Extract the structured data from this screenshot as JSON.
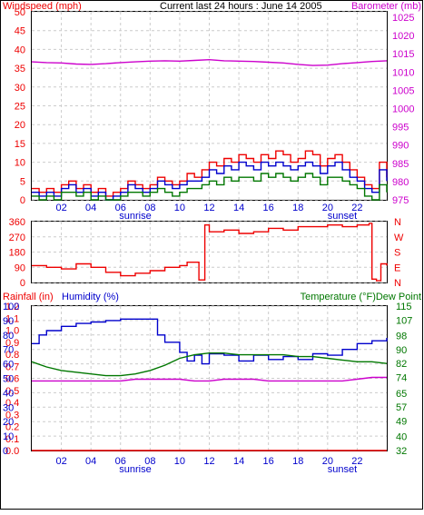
{
  "header": {
    "title": "Current last 24 hours : June 14 2005",
    "left_axis_label": "Windspeed (mph)",
    "right_axis_label": "Barometer (mb)"
  },
  "colors": {
    "red": "#ee0000",
    "blue": "#0000cc",
    "green": "#007700",
    "magenta": "#cc00cc",
    "grid": "#cccccc",
    "frame": "#000000"
  },
  "x_axis": {
    "ticks": [
      "02",
      "04",
      "06",
      "08",
      "10",
      "12",
      "14",
      "16",
      "18",
      "20",
      "22"
    ],
    "sunrise_label": "sunrise",
    "sunset_label": "sunset"
  },
  "chart_data": [
    {
      "type": "line",
      "name": "wind-barometer",
      "x_range": [
        0,
        24
      ],
      "left_axis": {
        "label": "Windspeed (mph)",
        "ticks": [
          0,
          5,
          10,
          15,
          20,
          25,
          30,
          35,
          40,
          45,
          50
        ],
        "ylim": [
          0,
          50
        ]
      },
      "right_axis": {
        "label": "Barometer (mb)",
        "ticks": [
          975,
          980,
          985,
          990,
          995,
          1000,
          1005,
          1010,
          1015,
          1020,
          1025
        ],
        "ylim": [
          975,
          1026.5
        ]
      },
      "series": [
        {
          "color_key": "magenta",
          "axis": "right",
          "x": [
            0,
            1,
            2,
            3,
            4,
            5,
            6,
            7,
            8,
            9,
            10,
            11,
            12,
            13,
            14,
            15,
            16,
            17,
            18,
            19,
            20,
            21,
            22,
            23,
            24
          ],
          "y": [
            1012.8,
            1012.6,
            1012.5,
            1012.2,
            1012.1,
            1012.3,
            1012.6,
            1012.8,
            1013.0,
            1013.1,
            1013.0,
            1013.2,
            1013.4,
            1013.1,
            1013.0,
            1012.9,
            1012.7,
            1012.5,
            1012.1,
            1011.8,
            1011.9,
            1012.3,
            1012.6,
            1012.9,
            1013.1
          ]
        },
        {
          "color_key": "red",
          "axis": "left",
          "x": [
            0,
            0.5,
            1,
            1.5,
            2,
            2.5,
            3,
            3.5,
            4,
            4.5,
            5,
            5.5,
            6,
            6.5,
            7,
            7.5,
            8,
            8.5,
            9,
            9.5,
            10,
            10.5,
            11,
            11.5,
            12,
            12.5,
            13,
            13.5,
            14,
            14.5,
            15,
            15.5,
            16,
            16.5,
            17,
            17.5,
            18,
            18.5,
            19,
            19.5,
            20,
            20.5,
            21,
            21.5,
            22,
            22.5,
            23,
            23.5,
            24
          ],
          "y": [
            3,
            2,
            3,
            2,
            4,
            5,
            3,
            4,
            2,
            3,
            1,
            2,
            3,
            5,
            4,
            3,
            4,
            6,
            5,
            4,
            5,
            7,
            6,
            8,
            10,
            9,
            11,
            10,
            12,
            11,
            10,
            12,
            11,
            13,
            12,
            10,
            11,
            13,
            12,
            9,
            11,
            12,
            10,
            8,
            6,
            4,
            3,
            10,
            6
          ]
        },
        {
          "color_key": "blue",
          "axis": "left",
          "x": [
            0,
            0.5,
            1,
            1.5,
            2,
            2.5,
            3,
            3.5,
            4,
            4.5,
            5,
            5.5,
            6,
            6.5,
            7,
            7.5,
            8,
            8.5,
            9,
            9.5,
            10,
            10.5,
            11,
            11.5,
            12,
            12.5,
            13,
            13.5,
            14,
            14.5,
            15,
            15.5,
            16,
            16.5,
            17,
            17.5,
            18,
            18.5,
            19,
            19.5,
            20,
            20.5,
            21,
            21.5,
            22,
            22.5,
            23,
            23.5,
            24
          ],
          "y": [
            2,
            1,
            2,
            1,
            3,
            4,
            2,
            3,
            1,
            2,
            0,
            1,
            2,
            4,
            3,
            2,
            3,
            5,
            4,
            3,
            4,
            5,
            5,
            6,
            8,
            7,
            9,
            8,
            10,
            9,
            8,
            10,
            9,
            10,
            9,
            8,
            9,
            10,
            9,
            7,
            9,
            10,
            8,
            6,
            5,
            3,
            2,
            8,
            5
          ]
        },
        {
          "color_key": "green",
          "axis": "left",
          "x": [
            0,
            0.5,
            1,
            1.5,
            2,
            2.5,
            3,
            3.5,
            4,
            4.5,
            5,
            5.5,
            6,
            6.5,
            7,
            7.5,
            8,
            8.5,
            9,
            9.5,
            10,
            10.5,
            11,
            11.5,
            12,
            12.5,
            13,
            13.5,
            14,
            14.5,
            15,
            15.5,
            16,
            16.5,
            17,
            17.5,
            18,
            18.5,
            19,
            19.5,
            20,
            20.5,
            21,
            21.5,
            22,
            22.5,
            23,
            23.5,
            24
          ],
          "y": [
            1,
            0,
            1,
            0,
            2,
            2,
            1,
            2,
            0,
            1,
            0,
            0,
            1,
            2,
            2,
            1,
            2,
            3,
            2,
            1,
            2,
            3,
            3,
            4,
            5,
            4,
            6,
            5,
            6,
            6,
            5,
            7,
            6,
            7,
            6,
            5,
            6,
            7,
            6,
            4,
            6,
            6,
            5,
            4,
            3,
            1,
            0,
            4,
            2
          ]
        }
      ]
    },
    {
      "type": "line",
      "name": "wind-direction",
      "x_range": [
        0,
        24
      ],
      "left_axis": {
        "ticks": [
          0,
          90,
          180,
          270,
          360
        ],
        "ylim": [
          0,
          360
        ]
      },
      "right_axis": {
        "ticks": [
          "N",
          "W",
          "S",
          "E",
          "N"
        ]
      },
      "series": [
        {
          "color_key": "red",
          "axis": "left",
          "x": [
            0,
            1,
            2,
            3,
            4,
            5,
            6,
            7,
            8,
            9,
            10,
            10.5,
            11,
            11.3,
            11.5,
            11.7,
            12,
            13,
            14,
            15,
            16,
            17,
            18,
            19,
            20,
            21,
            22,
            22.8,
            23,
            23.3,
            23.6,
            24
          ],
          "y": [
            100,
            90,
            80,
            110,
            90,
            60,
            40,
            55,
            70,
            90,
            100,
            120,
            120,
            15,
            15,
            340,
            300,
            310,
            290,
            300,
            320,
            310,
            330,
            330,
            340,
            330,
            340,
            350,
            20,
            10,
            110,
            100
          ]
        }
      ]
    },
    {
      "type": "line",
      "name": "rain-humidity-temperature",
      "x_range": [
        0,
        24
      ],
      "left_axis_1": {
        "label": "Rainfall (in)",
        "ticks": [
          0.0,
          0.1,
          0.2,
          0.3,
          0.4,
          0.5,
          0.6,
          0.7,
          0.8,
          0.9,
          1.0,
          1.1,
          1.2
        ],
        "ylim": [
          0,
          1.2
        ]
      },
      "left_axis_2": {
        "label": "Humidity (%)",
        "ticks": [
          0,
          10,
          20,
          30,
          40,
          50,
          60,
          70,
          80,
          90,
          100
        ],
        "ylim": [
          0,
          100
        ]
      },
      "right_axis": {
        "label": "Temperature (°F)Dew Point",
        "ticks": [
          32,
          40,
          49,
          57,
          65,
          74,
          82,
          90,
          98,
          107,
          115
        ],
        "ylim": [
          32,
          115
        ]
      },
      "series": [
        {
          "color_key": "blue",
          "axis": "left_2",
          "x": [
            0,
            0.5,
            1,
            2,
            3,
            4,
            5,
            6,
            7,
            7.8,
            8.5,
            9,
            10,
            10.5,
            11,
            11.5,
            12,
            13,
            14,
            15,
            16,
            17,
            18,
            19,
            20,
            21,
            22,
            23,
            24
          ],
          "y": [
            74,
            80,
            83,
            86,
            88,
            89,
            90,
            91,
            91,
            91,
            80,
            75,
            68,
            62,
            66,
            60,
            67,
            66,
            62,
            66,
            63,
            65,
            63,
            67,
            66,
            70,
            74,
            76,
            78
          ]
        },
        {
          "color_key": "green",
          "axis": "right",
          "x": [
            0,
            1,
            2,
            3,
            4,
            5,
            6,
            7,
            8,
            9,
            10,
            11,
            12,
            13,
            14,
            15,
            16,
            17,
            18,
            19,
            20,
            21,
            22,
            23,
            24
          ],
          "y": [
            83,
            80,
            78,
            77,
            76,
            75,
            75,
            76,
            78,
            81,
            85,
            87,
            88,
            88,
            87,
            87,
            87,
            87,
            86,
            86,
            85,
            84,
            83,
            83,
            82
          ]
        },
        {
          "color_key": "magenta",
          "axis": "right",
          "x": [
            0,
            1,
            2,
            3,
            4,
            5,
            6,
            7,
            8,
            9,
            10,
            11,
            12,
            13,
            14,
            15,
            16,
            17,
            18,
            19,
            20,
            21,
            22,
            23,
            24
          ],
          "y": [
            72,
            72,
            72,
            72,
            72,
            72,
            72,
            73,
            73,
            73,
            73,
            72,
            72,
            73,
            73,
            73,
            72,
            72,
            72,
            72,
            72,
            72,
            73,
            74,
            74
          ]
        },
        {
          "color_key": "red",
          "axis": "left_1",
          "x": [
            0,
            24
          ],
          "y": [
            0,
            0
          ]
        }
      ]
    }
  ]
}
